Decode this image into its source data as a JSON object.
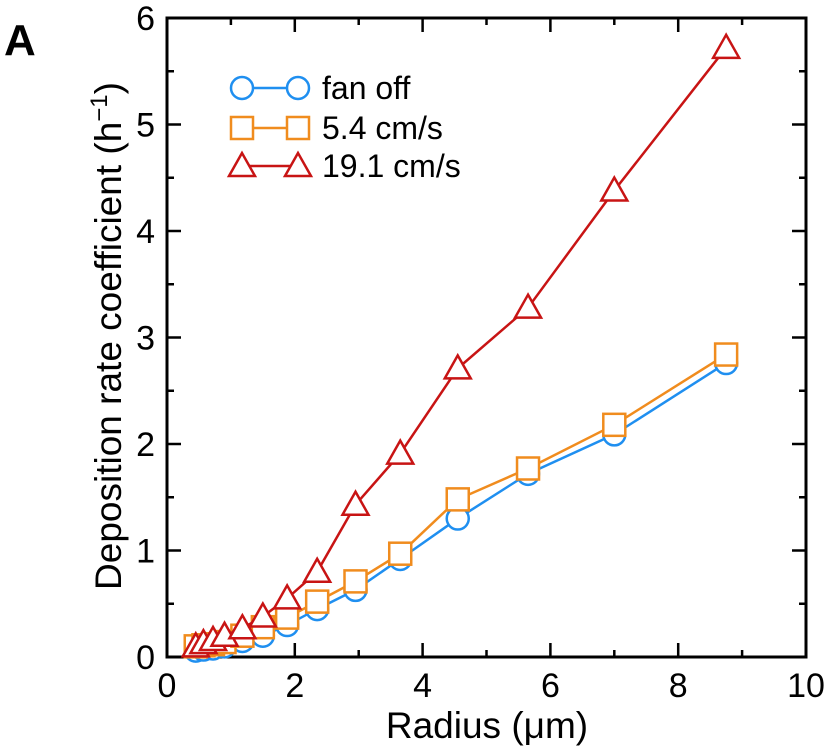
{
  "panel_label": "A",
  "chart_data": {
    "type": "line",
    "xlabel": "Radius (μm)",
    "ylabel_main": "Deposition rate coefficient (h",
    "ylabel_sup": "−1",
    "ylabel_close": ")",
    "xlim": [
      0,
      10
    ],
    "ylim": [
      0,
      6
    ],
    "xticks": [
      0,
      2,
      4,
      6,
      8,
      10
    ],
    "yticks": [
      0,
      1,
      2,
      3,
      4,
      5,
      6
    ],
    "xtick_labels": [
      "0",
      "2",
      "4",
      "6",
      "8",
      "10"
    ],
    "ytick_labels": [
      "0",
      "1",
      "2",
      "3",
      "4",
      "5",
      "6"
    ],
    "grid": false,
    "legend_position": "top-left",
    "series": [
      {
        "name": "fan off",
        "marker": "circle",
        "color": "#1f8ff0",
        "x": [
          0.45,
          0.57,
          0.72,
          0.9,
          1.18,
          1.5,
          1.88,
          2.35,
          2.95,
          3.65,
          4.55,
          5.65,
          7.0,
          8.75
        ],
        "y": [
          0.06,
          0.07,
          0.08,
          0.1,
          0.15,
          0.2,
          0.3,
          0.45,
          0.63,
          0.92,
          1.3,
          1.72,
          2.09,
          2.76
        ]
      },
      {
        "name": "5.4 cm/s",
        "marker": "square",
        "color": "#f08c1e",
        "x": [
          0.45,
          0.57,
          0.72,
          0.9,
          1.18,
          1.5,
          1.88,
          2.35,
          2.95,
          3.65,
          4.55,
          5.65,
          7.0,
          8.75
        ],
        "y": [
          0.1,
          0.11,
          0.12,
          0.14,
          0.2,
          0.28,
          0.37,
          0.52,
          0.71,
          0.97,
          1.48,
          1.77,
          2.18,
          2.84
        ]
      },
      {
        "name": "19.1 cm/s",
        "marker": "triangle",
        "color": "#c81414",
        "x": [
          0.45,
          0.57,
          0.72,
          0.9,
          1.18,
          1.5,
          1.88,
          2.35,
          2.95,
          3.65,
          4.55,
          5.65,
          7.0,
          8.75
        ],
        "y": [
          0.1,
          0.13,
          0.16,
          0.2,
          0.27,
          0.38,
          0.55,
          0.8,
          1.43,
          1.91,
          2.71,
          3.28,
          4.38,
          5.72
        ]
      }
    ]
  }
}
